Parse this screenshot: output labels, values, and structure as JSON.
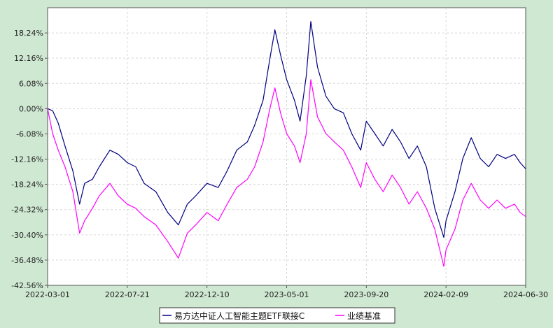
{
  "chart_data": {
    "type": "line",
    "title": "",
    "xlabel": "",
    "ylabel": "",
    "x_ticks": [
      "2022-03-01",
      "2022-07-21",
      "2022-12-10",
      "2023-05-01",
      "2023-09-20",
      "2024-02-09",
      "2024-06-30"
    ],
    "y_ticks": [
      "18.24%",
      "12.16%",
      "6.08%",
      "0.00%",
      "-6.08%",
      "-12.16%",
      "-18.24%",
      "-24.32%",
      "-30.40%",
      "-36.48%",
      "-42.56%"
    ],
    "ylim": [
      -42.56,
      24.32
    ],
    "xlim": [
      "2022-03-01",
      "2024-06-30"
    ],
    "grid": true,
    "legend_position": "bottom",
    "colors": {
      "background": "#cfe8d2",
      "plot_area": "#ffffff",
      "grid": "#d8d8d8",
      "axis": "#555555"
    },
    "series": [
      {
        "name": "易方达中证人工智能主题ETF联接C",
        "color": "#000080",
        "points": [
          [
            "2022-03-01",
            0.0
          ],
          [
            "2022-03-10",
            -0.5
          ],
          [
            "2022-03-20",
            -3.5
          ],
          [
            "2022-04-01",
            -9
          ],
          [
            "2022-04-15",
            -15
          ],
          [
            "2022-04-27",
            -23
          ],
          [
            "2022-05-06",
            -18
          ],
          [
            "2022-05-20",
            -17
          ],
          [
            "2022-06-01",
            -14
          ],
          [
            "2022-06-20",
            -10
          ],
          [
            "2022-07-05",
            -11
          ],
          [
            "2022-07-21",
            -13
          ],
          [
            "2022-08-05",
            -14
          ],
          [
            "2022-08-20",
            -18
          ],
          [
            "2022-09-10",
            -20
          ],
          [
            "2022-10-01",
            -25
          ],
          [
            "2022-10-20",
            -28
          ],
          [
            "2022-11-05",
            -23
          ],
          [
            "2022-11-20",
            -21
          ],
          [
            "2022-12-10",
            -18
          ],
          [
            "2022-12-30",
            -19
          ],
          [
            "2023-01-15",
            -15
          ],
          [
            "2023-02-01",
            -10
          ],
          [
            "2023-02-20",
            -8
          ],
          [
            "2023-03-05",
            -4
          ],
          [
            "2023-03-20",
            2
          ],
          [
            "2023-04-01",
            12
          ],
          [
            "2023-04-10",
            19
          ],
          [
            "2023-04-20",
            13
          ],
          [
            "2023-05-01",
            7
          ],
          [
            "2023-05-15",
            2
          ],
          [
            "2023-05-25",
            -3
          ],
          [
            "2023-06-05",
            8
          ],
          [
            "2023-06-13",
            21
          ],
          [
            "2023-06-25",
            10
          ],
          [
            "2023-07-10",
            3
          ],
          [
            "2023-07-25",
            0
          ],
          [
            "2023-08-10",
            -1
          ],
          [
            "2023-08-25",
            -6
          ],
          [
            "2023-09-10",
            -10
          ],
          [
            "2023-09-20",
            -3
          ],
          [
            "2023-10-05",
            -6
          ],
          [
            "2023-10-20",
            -9
          ],
          [
            "2023-11-05",
            -5
          ],
          [
            "2023-11-20",
            -8
          ],
          [
            "2023-12-05",
            -12
          ],
          [
            "2023-12-20",
            -9
          ],
          [
            "2024-01-05",
            -14
          ],
          [
            "2024-01-20",
            -24
          ],
          [
            "2024-02-05",
            -31
          ],
          [
            "2024-02-09",
            -27
          ],
          [
            "2024-02-25",
            -20
          ],
          [
            "2024-03-10",
            -12
          ],
          [
            "2024-03-25",
            -7
          ],
          [
            "2024-04-10",
            -12
          ],
          [
            "2024-04-25",
            -14
          ],
          [
            "2024-05-10",
            -11
          ],
          [
            "2024-05-25",
            -12
          ],
          [
            "2024-06-10",
            -11
          ],
          [
            "2024-06-20",
            -13
          ],
          [
            "2024-06-30",
            -14.5
          ]
        ]
      },
      {
        "name": "业绩基准",
        "color": "#ff00ff",
        "points": [
          [
            "2022-03-01",
            0.0
          ],
          [
            "2022-03-10",
            -6
          ],
          [
            "2022-03-20",
            -10
          ],
          [
            "2022-04-01",
            -14
          ],
          [
            "2022-04-15",
            -20
          ],
          [
            "2022-04-27",
            -30
          ],
          [
            "2022-05-06",
            -27
          ],
          [
            "2022-05-20",
            -24
          ],
          [
            "2022-06-01",
            -21
          ],
          [
            "2022-06-20",
            -18
          ],
          [
            "2022-07-05",
            -21
          ],
          [
            "2022-07-21",
            -23
          ],
          [
            "2022-08-05",
            -24
          ],
          [
            "2022-08-20",
            -26
          ],
          [
            "2022-09-10",
            -28
          ],
          [
            "2022-10-01",
            -32
          ],
          [
            "2022-10-20",
            -36
          ],
          [
            "2022-11-05",
            -30
          ],
          [
            "2022-11-20",
            -28
          ],
          [
            "2022-12-10",
            -25
          ],
          [
            "2022-12-30",
            -27
          ],
          [
            "2023-01-15",
            -23
          ],
          [
            "2023-02-01",
            -19
          ],
          [
            "2023-02-20",
            -17
          ],
          [
            "2023-03-05",
            -14
          ],
          [
            "2023-03-20",
            -8
          ],
          [
            "2023-04-01",
            0
          ],
          [
            "2023-04-10",
            5
          ],
          [
            "2023-04-20",
            -1
          ],
          [
            "2023-05-01",
            -6
          ],
          [
            "2023-05-15",
            -9
          ],
          [
            "2023-05-25",
            -13
          ],
          [
            "2023-06-05",
            -6
          ],
          [
            "2023-06-13",
            7
          ],
          [
            "2023-06-25",
            -2
          ],
          [
            "2023-07-10",
            -6
          ],
          [
            "2023-07-25",
            -8
          ],
          [
            "2023-08-10",
            -10
          ],
          [
            "2023-08-25",
            -14
          ],
          [
            "2023-09-10",
            -19
          ],
          [
            "2023-09-20",
            -13
          ],
          [
            "2023-10-05",
            -17
          ],
          [
            "2023-10-20",
            -20
          ],
          [
            "2023-11-05",
            -16
          ],
          [
            "2023-11-20",
            -19
          ],
          [
            "2023-12-05",
            -23
          ],
          [
            "2023-12-20",
            -20
          ],
          [
            "2024-01-05",
            -24
          ],
          [
            "2024-01-20",
            -29
          ],
          [
            "2024-02-05",
            -38
          ],
          [
            "2024-02-09",
            -34
          ],
          [
            "2024-02-25",
            -29
          ],
          [
            "2024-03-10",
            -22
          ],
          [
            "2024-03-25",
            -18
          ],
          [
            "2024-04-10",
            -22
          ],
          [
            "2024-04-25",
            -24
          ],
          [
            "2024-05-10",
            -22
          ],
          [
            "2024-05-25",
            -24
          ],
          [
            "2024-06-10",
            -23
          ],
          [
            "2024-06-20",
            -25
          ],
          [
            "2024-06-30",
            -26
          ]
        ]
      }
    ]
  }
}
